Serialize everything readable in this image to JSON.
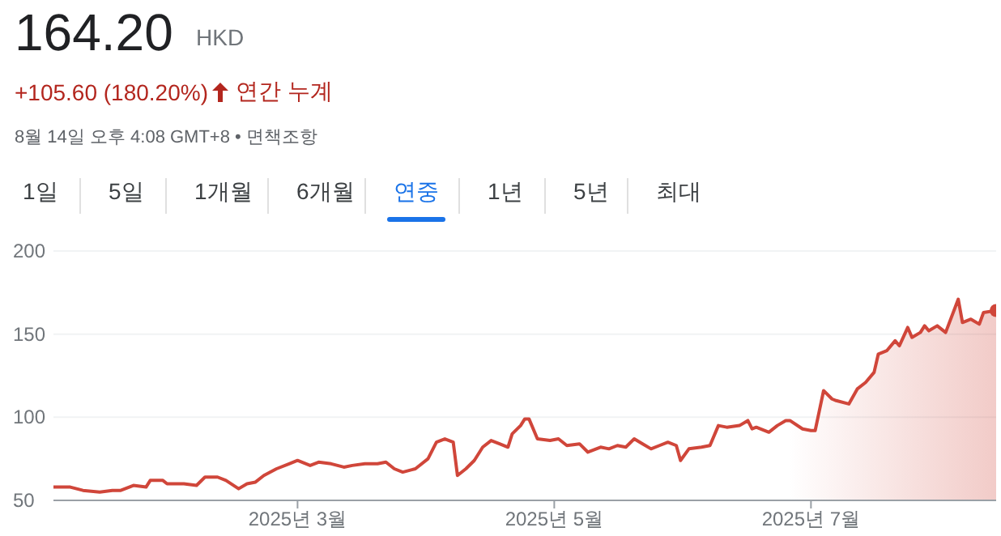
{
  "chart_data": {
    "type": "area",
    "title": "164.20",
    "annotations": [
      "HKD",
      "+105.60 (180.20%)",
      "연간 누계",
      "8월 14일 오후 4:08 GMT+8 • 면책조항",
      "1일",
      "5일",
      "1개월",
      "6개월",
      "연중",
      "1년",
      "5년",
      "최대"
    ],
    "x": [
      "2025-01-02",
      "2025-01-06",
      "2025-01-09",
      "2025-01-13",
      "2025-01-16",
      "2025-01-18",
      "2025-01-21",
      "2025-01-24",
      "2025-01-25",
      "2025-01-28",
      "2025-01-29",
      "2025-02-02",
      "2025-02-05",
      "2025-02-07",
      "2025-02-10",
      "2025-02-12",
      "2025-02-15",
      "2025-02-17",
      "2025-02-19",
      "2025-02-21",
      "2025-02-24",
      "2025-02-27",
      "2025-03-01",
      "2025-03-04",
      "2025-03-06",
      "2025-03-09",
      "2025-03-12",
      "2025-03-14",
      "2025-03-17",
      "2025-03-20",
      "2025-03-22",
      "2025-03-24",
      "2025-03-26",
      "2025-03-29",
      "2025-04-01",
      "2025-04-03",
      "2025-04-05",
      "2025-04-07",
      "2025-04-08",
      "2025-04-10",
      "2025-04-12",
      "2025-04-14",
      "2025-04-16",
      "2025-04-18",
      "2025-04-20",
      "2025-04-21",
      "2025-04-23",
      "2025-04-24",
      "2025-04-25",
      "2025-04-27",
      "2025-04-30",
      "2025-05-02",
      "2025-05-04",
      "2025-05-07",
      "2025-05-09",
      "2025-05-12",
      "2025-05-14",
      "2025-05-16",
      "2025-05-18",
      "2025-05-20",
      "2025-05-22",
      "2025-05-24",
      "2025-05-26",
      "2025-05-28",
      "2025-05-30",
      "2025-05-31",
      "2025-06-02",
      "2025-06-05",
      "2025-06-07",
      "2025-06-09",
      "2025-06-11",
      "2025-06-14",
      "2025-06-16",
      "2025-06-17",
      "2025-06-18",
      "2025-06-21",
      "2025-06-23",
      "2025-06-25",
      "2025-06-26",
      "2025-06-29",
      "2025-07-01",
      "2025-07-02",
      "2025-07-04",
      "2025-07-06",
      "2025-07-07",
      "2025-07-10",
      "2025-07-12",
      "2025-07-14",
      "2025-07-16",
      "2025-07-17",
      "2025-07-19",
      "2025-07-21",
      "2025-07-22",
      "2025-07-24",
      "2025-07-25",
      "2025-07-27",
      "2025-07-28",
      "2025-07-29",
      "2025-07-31",
      "2025-08-02",
      "2025-08-05",
      "2025-08-06",
      "2025-08-08",
      "2025-08-10",
      "2025-08-11",
      "2025-08-14"
    ],
    "series": [
      {
        "color": "#d0463a",
        "values": [
          58,
          58,
          56,
          55,
          56,
          56,
          59,
          58,
          62,
          62,
          60,
          60,
          59,
          64,
          64,
          62,
          57,
          60,
          61,
          65,
          69,
          72,
          74,
          71,
          73,
          72,
          70,
          71,
          72,
          72,
          73,
          69,
          67,
          69,
          75,
          85,
          87,
          85,
          65,
          69,
          74,
          82,
          86,
          84,
          82,
          90,
          95,
          99,
          99,
          87,
          86,
          87,
          83,
          84,
          79,
          82,
          81,
          83,
          82,
          87,
          84,
          81,
          83,
          85,
          83,
          74,
          81,
          82,
          83,
          95,
          94,
          95,
          98,
          93,
          94,
          91,
          95,
          98,
          98,
          93,
          92,
          92,
          116,
          111,
          110,
          108,
          117,
          121,
          127,
          138,
          140,
          146,
          143,
          154,
          148,
          151,
          155,
          152,
          155,
          151,
          171,
          157,
          159,
          156,
          163,
          164.2
        ]
      }
    ],
    "xlim": [
      "2025-01-02",
      "2025-08-14"
    ],
    "xticks": [
      {
        "value": "2025-03-01",
        "label": "2025년 3월"
      },
      {
        "value": "2025-05-01",
        "label": "2025년 5월"
      },
      {
        "value": "2025-07-01",
        "label": "2025년 7월"
      }
    ],
    "ylim": [
      50,
      200
    ],
    "yticks": [
      50,
      100,
      150,
      200
    ],
    "grid": "y",
    "legend": false
  }
}
